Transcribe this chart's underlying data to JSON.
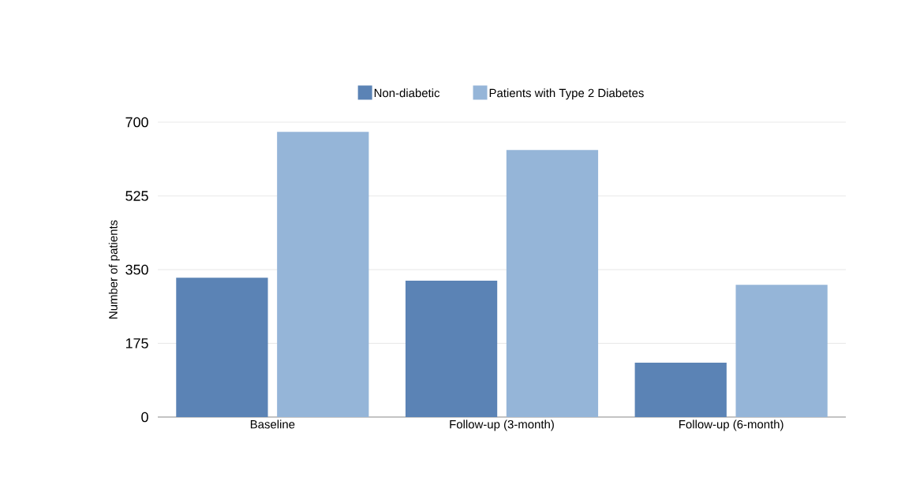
{
  "chart_data": {
    "type": "bar",
    "ylabel": "Number of patients",
    "categories": [
      "Baseline",
      "Follow-up (3-month)",
      "Follow-up (6-month)"
    ],
    "series": [
      {
        "name": "Non-diabetic",
        "color": "#5b83b5",
        "values": [
          331,
          324,
          129
        ]
      },
      {
        "name": "Patients with Type 2 Diabetes",
        "color": "#95b5d8",
        "values": [
          677,
          634,
          314
        ]
      }
    ],
    "ylim": [
      0,
      700
    ],
    "yticks": [
      0,
      175,
      350,
      525,
      700
    ],
    "grid": "y",
    "legend": "top"
  }
}
